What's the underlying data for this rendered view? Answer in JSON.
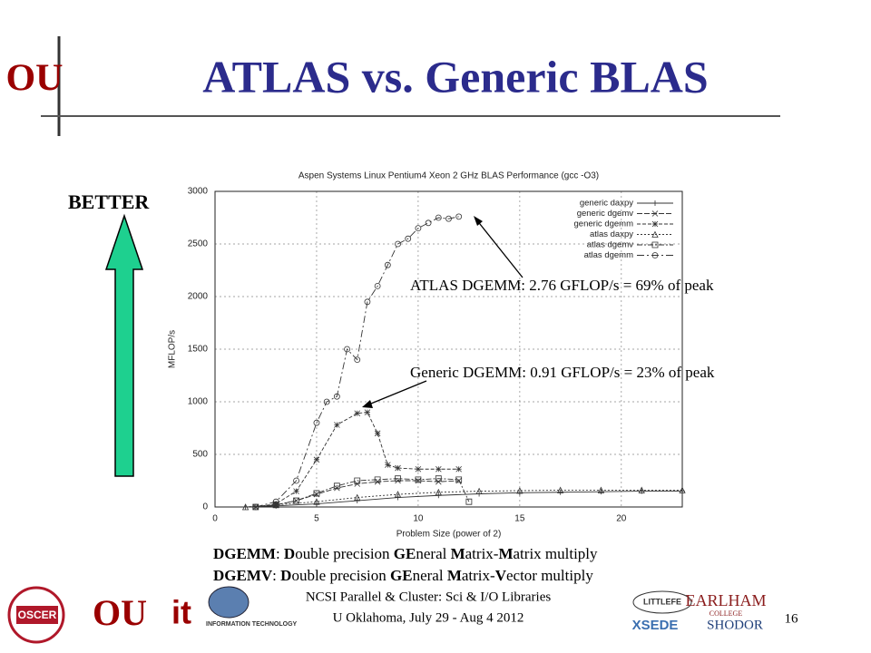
{
  "header": {
    "logo": "OU",
    "title": "ATLAS vs. Generic BLAS"
  },
  "better_label": "BETTER",
  "chart_data": {
    "type": "line",
    "title": "Aspen Systems Linux Pentium4 Xeon 2 GHz BLAS Performance (gcc -O3)",
    "x_label": "Problem Size (power of 2)",
    "y_label": "MFLOP/s",
    "xlim": [
      0,
      23
    ],
    "ylim": [
      0,
      3000
    ],
    "xticks": [
      0,
      5,
      10,
      15,
      20
    ],
    "yticks": [
      0,
      500,
      1000,
      1500,
      2000,
      2500,
      3000
    ],
    "grid": true,
    "legend": "upper right",
    "series": [
      {
        "name": "generic daxpy",
        "color": "#333333",
        "marker": "plus",
        "x": [
          1.5,
          3,
          5,
          7,
          9,
          11,
          13,
          15,
          17,
          19,
          21,
          23
        ],
        "values": [
          0,
          10,
          30,
          60,
          90,
          110,
          125,
          135,
          140,
          145,
          150,
          150
        ]
      },
      {
        "name": "generic dgemv",
        "color": "#333333",
        "marker": "cross",
        "x": [
          2,
          3,
          4,
          5,
          6,
          7,
          8,
          9,
          10,
          11,
          12
        ],
        "values": [
          0,
          20,
          60,
          120,
          180,
          220,
          240,
          250,
          250,
          240,
          250
        ]
      },
      {
        "name": "generic dgemm",
        "color": "#333333",
        "marker": "star",
        "x": [
          2,
          3,
          4,
          5,
          6,
          7,
          7.5,
          8,
          8.5,
          9,
          10,
          11,
          12
        ],
        "values": [
          0,
          30,
          150,
          450,
          780,
          890,
          900,
          700,
          400,
          370,
          360,
          360,
          360
        ]
      },
      {
        "name": "atlas   daxpy",
        "color": "#333333",
        "marker": "triangle",
        "x": [
          1.5,
          3,
          5,
          7,
          9,
          11,
          13,
          15,
          17,
          19,
          21,
          23
        ],
        "values": [
          0,
          20,
          50,
          90,
          120,
          140,
          150,
          155,
          160,
          160,
          160,
          160
        ]
      },
      {
        "name": "atlas   dgemv",
        "color": "#333333",
        "marker": "square",
        "x": [
          2,
          3,
          4,
          5,
          6,
          7,
          8,
          9,
          10,
          11,
          12,
          12.5
        ],
        "values": [
          0,
          20,
          60,
          130,
          200,
          250,
          260,
          270,
          260,
          270,
          260,
          50
        ]
      },
      {
        "name": "atlas   dgemm",
        "color": "#333333",
        "marker": "circle",
        "x": [
          2,
          3,
          4,
          5,
          5.5,
          6,
          6.5,
          7,
          7.5,
          8,
          8.5,
          9,
          9.5,
          10,
          10.5,
          11,
          11.5,
          12
        ],
        "values": [
          0,
          50,
          250,
          800,
          1000,
          1050,
          1500,
          1400,
          1950,
          2100,
          2300,
          2500,
          2550,
          2650,
          2700,
          2750,
          2740,
          2760
        ]
      }
    ],
    "annotations": [
      "ATLAS DGEMM:   2.76 GFLOP/s = 69% of peak",
      "Generic DGEMM:   0.91 GFLOP/s = 23% of peak"
    ]
  },
  "definitions": [
    [
      "DGEMM",
      ": ",
      "D",
      "ouble precision ",
      "GE",
      "neral ",
      "M",
      "atrix-",
      "M",
      "atrix multiply"
    ],
    [
      "DGEMV",
      ":  ",
      "D",
      "ouble precision ",
      "GE",
      "neral ",
      "M",
      "atrix-",
      "V",
      "ector multiply"
    ]
  ],
  "footer": {
    "lines": [
      "NCSI Parallel & Cluster: Sci & I/O Libraries",
      "U Oklahoma, July 29 - Aug 4 2012"
    ],
    "page": "16"
  },
  "logos": {
    "oscer": "OSCER",
    "ou": "OU",
    "it": "it",
    "it_text": "INFORMATION TECHNOLOGY",
    "littlefe": "LITTLEFE",
    "earlham": "EARLHAM",
    "college": "COLLEGE",
    "xsede": "XSEDE",
    "shodor": "SHODOR"
  }
}
